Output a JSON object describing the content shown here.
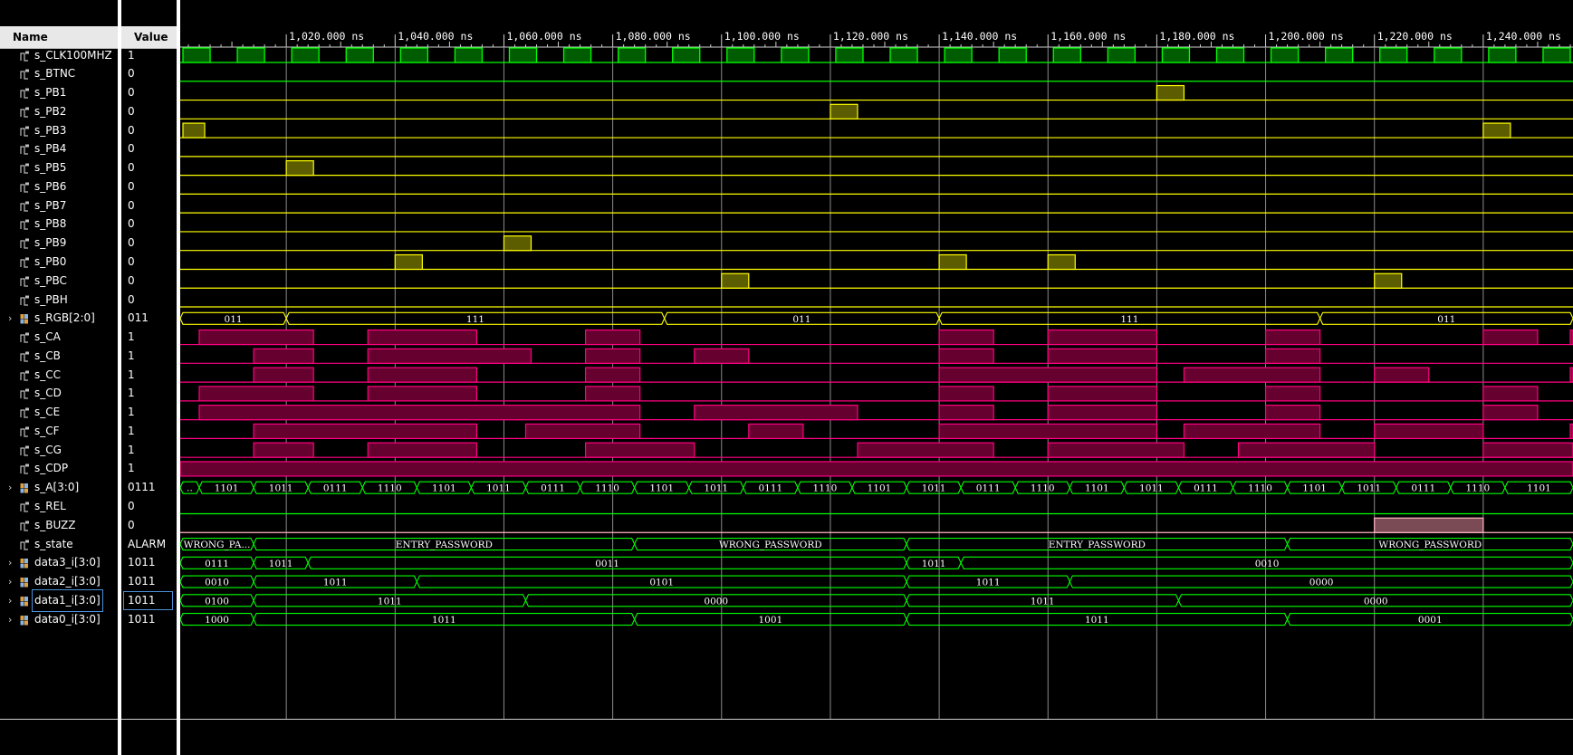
{
  "columns": {
    "name": "Name",
    "value": "Value"
  },
  "time_axis": {
    "unit": "ns",
    "range_ns": [
      1000.5,
      1256.5
    ],
    "major_ticks_ns": [
      1020,
      1040,
      1060,
      1080,
      1100,
      1120,
      1140,
      1160,
      1180,
      1200,
      1220,
      1240
    ],
    "major_tick_labels": [
      "1,020.000 ns",
      "1,040.000 ns",
      "1,060.000 ns",
      "1,080.000 ns",
      "1,100.000 ns",
      "1,120.000 ns",
      "1,140.000 ns",
      "1,160.000 ns",
      "1,180.000 ns",
      "1,200.000 ns",
      "1,220.000 ns",
      "1,240.000 ns"
    ],
    "minor_tick_step_ns": 2
  },
  "colors": {
    "clock": "#00ff00",
    "clock_fill": "#005c00",
    "low_signal": "#00ff00",
    "button": "#ffff00",
    "button_fill": "#5c5c00",
    "segment": "#ff0080",
    "segment_fill": "#66002e",
    "buzz": "#ffb4c0",
    "buzz_fill": "#7a4a55",
    "bus": "#00ff00",
    "bus_text": "#ffffff",
    "grid": "#8a8a8a",
    "axis_text": "#ffffff",
    "selection": "#4a90d9"
  },
  "signals": [
    {
      "name": "s_CLK100MHZ",
      "value": "1",
      "kind": "clock",
      "period_ns": 10,
      "high_offset_ns": 1,
      "color": "clock"
    },
    {
      "name": "s_BTNC",
      "value": "0",
      "kind": "bit",
      "pulses_ns": [],
      "color": "low_signal"
    },
    {
      "name": "s_PB1",
      "value": "0",
      "kind": "bit",
      "pulses_ns": [
        [
          1180,
          1185
        ]
      ],
      "color": "button"
    },
    {
      "name": "s_PB2",
      "value": "0",
      "kind": "bit",
      "pulses_ns": [
        [
          1120,
          1125
        ]
      ],
      "color": "button"
    },
    {
      "name": "s_PB3",
      "value": "0",
      "kind": "bit",
      "pulses_ns": [
        [
          1001,
          1005
        ],
        [
          1240,
          1245
        ]
      ],
      "color": "button"
    },
    {
      "name": "s_PB4",
      "value": "0",
      "kind": "bit",
      "pulses_ns": [],
      "color": "button"
    },
    {
      "name": "s_PB5",
      "value": "0",
      "kind": "bit",
      "pulses_ns": [
        [
          1020,
          1025
        ]
      ],
      "color": "button"
    },
    {
      "name": "s_PB6",
      "value": "0",
      "kind": "bit",
      "pulses_ns": [],
      "color": "button"
    },
    {
      "name": "s_PB7",
      "value": "0",
      "kind": "bit",
      "pulses_ns": [],
      "color": "button"
    },
    {
      "name": "s_PB8",
      "value": "0",
      "kind": "bit",
      "pulses_ns": [],
      "color": "button"
    },
    {
      "name": "s_PB9",
      "value": "0",
      "kind": "bit",
      "pulses_ns": [
        [
          1060,
          1065
        ]
      ],
      "color": "button"
    },
    {
      "name": "s_PB0",
      "value": "0",
      "kind": "bit",
      "pulses_ns": [
        [
          1040,
          1045
        ],
        [
          1140,
          1145
        ],
        [
          1160,
          1165
        ]
      ],
      "color": "button"
    },
    {
      "name": "s_PBC",
      "value": "0",
      "kind": "bit",
      "pulses_ns": [
        [
          1100,
          1105
        ],
        [
          1220,
          1225
        ]
      ],
      "color": "button"
    },
    {
      "name": "s_PBH",
      "value": "0",
      "kind": "bit",
      "pulses_ns": [],
      "color": "button"
    },
    {
      "name": "s_RGB[2:0]",
      "value": "011",
      "kind": "bus",
      "expandable": true,
      "color": "button",
      "segments": [
        [
          1000.5,
          1020,
          "011"
        ],
        [
          1020,
          1089.5,
          "111"
        ],
        [
          1089.5,
          1140,
          "011"
        ],
        [
          1140,
          1210,
          "111"
        ],
        [
          1210,
          1256.5,
          "011"
        ]
      ]
    },
    {
      "name": "s_CA",
      "value": "1",
      "kind": "bit",
      "pulses_ns": [
        [
          1004,
          1025
        ],
        [
          1035,
          1055
        ],
        [
          1075,
          1085
        ],
        [
          1140,
          1150
        ],
        [
          1160,
          1180
        ],
        [
          1200,
          1210
        ],
        [
          1240,
          1250
        ],
        [
          1256,
          1256.5
        ]
      ],
      "color": "segment"
    },
    {
      "name": "s_CB",
      "value": "1",
      "kind": "bit",
      "pulses_ns": [
        [
          1014,
          1025
        ],
        [
          1035,
          1065
        ],
        [
          1075,
          1085
        ],
        [
          1095,
          1105
        ],
        [
          1140,
          1150
        ],
        [
          1160,
          1180
        ],
        [
          1200,
          1210
        ]
      ],
      "color": "segment"
    },
    {
      "name": "s_CC",
      "value": "1",
      "kind": "bit",
      "pulses_ns": [
        [
          1014,
          1025
        ],
        [
          1035,
          1055
        ],
        [
          1075,
          1085
        ],
        [
          1140,
          1180
        ],
        [
          1185,
          1210
        ],
        [
          1220,
          1230
        ],
        [
          1256,
          1256.5
        ]
      ],
      "color": "segment"
    },
    {
      "name": "s_CD",
      "value": "1",
      "kind": "bit",
      "pulses_ns": [
        [
          1004,
          1025
        ],
        [
          1035,
          1055
        ],
        [
          1075,
          1085
        ],
        [
          1140,
          1150
        ],
        [
          1160,
          1180
        ],
        [
          1200,
          1210
        ],
        [
          1240,
          1250
        ]
      ],
      "color": "segment"
    },
    {
      "name": "s_CE",
      "value": "1",
      "kind": "bit",
      "pulses_ns": [
        [
          1004,
          1085
        ],
        [
          1095,
          1125
        ],
        [
          1140,
          1150
        ],
        [
          1160,
          1180
        ],
        [
          1200,
          1210
        ],
        [
          1240,
          1250
        ]
      ],
      "color": "segment"
    },
    {
      "name": "s_CF",
      "value": "1",
      "kind": "bit",
      "pulses_ns": [
        [
          1014,
          1055
        ],
        [
          1064,
          1085
        ],
        [
          1105,
          1115
        ],
        [
          1140,
          1180
        ],
        [
          1185,
          1210
        ],
        [
          1220,
          1240
        ],
        [
          1256,
          1256.5
        ]
      ],
      "color": "segment"
    },
    {
      "name": "s_CG",
      "value": "1",
      "kind": "bit",
      "pulses_ns": [
        [
          1014,
          1025
        ],
        [
          1035,
          1055
        ],
        [
          1075,
          1095
        ],
        [
          1125,
          1150
        ],
        [
          1160,
          1185
        ],
        [
          1195,
          1220
        ],
        [
          1240,
          1256.5
        ]
      ],
      "color": "segment"
    },
    {
      "name": "s_CDP",
      "value": "1",
      "kind": "bit",
      "pulses_ns": [
        [
          1000.5,
          1256.5
        ]
      ],
      "color": "segment"
    },
    {
      "name": "s_A[3:0]",
      "value": "0111",
      "kind": "bus",
      "expandable": true,
      "color": "bus",
      "segments": [
        [
          1000.5,
          1004,
          ".."
        ],
        [
          1004,
          1014,
          "1101"
        ],
        [
          1014,
          1024,
          "1011"
        ],
        [
          1024,
          1034,
          "0111"
        ],
        [
          1034,
          1044,
          "1110"
        ],
        [
          1044,
          1054,
          "1101"
        ],
        [
          1054,
          1064,
          "1011"
        ],
        [
          1064,
          1074,
          "0111"
        ],
        [
          1074,
          1084,
          "1110"
        ],
        [
          1084,
          1094,
          "1101"
        ],
        [
          1094,
          1104,
          "1011"
        ],
        [
          1104,
          1114,
          "0111"
        ],
        [
          1114,
          1124,
          "1110"
        ],
        [
          1124,
          1134,
          "1101"
        ],
        [
          1134,
          1144,
          "1011"
        ],
        [
          1144,
          1154,
          "0111"
        ],
        [
          1154,
          1164,
          "1110"
        ],
        [
          1164,
          1174,
          "1101"
        ],
        [
          1174,
          1184,
          "1011"
        ],
        [
          1184,
          1194,
          "0111"
        ],
        [
          1194,
          1204,
          "1110"
        ],
        [
          1204,
          1214,
          "1101"
        ],
        [
          1214,
          1224,
          "1011"
        ],
        [
          1224,
          1234,
          "0111"
        ],
        [
          1234,
          1244,
          "1110"
        ],
        [
          1244,
          1256.5,
          "1101"
        ]
      ]
    },
    {
      "name": "s_REL",
      "value": "0",
      "kind": "bit",
      "pulses_ns": [],
      "color": "low_signal"
    },
    {
      "name": "s_BUZZ",
      "value": "0",
      "kind": "bit",
      "pulses_ns": [
        [
          1220,
          1240
        ]
      ],
      "color": "buzz"
    },
    {
      "name": "s_state",
      "value": "ALARM",
      "kind": "bus",
      "expandable": false,
      "color": "bus",
      "segments": [
        [
          1000.5,
          1014,
          "WRONG_PA..."
        ],
        [
          1014,
          1084,
          "ENTRY_PASSWORD"
        ],
        [
          1084,
          1134,
          "WRONG_PASSWORD"
        ],
        [
          1134,
          1204,
          "ENTRY_PASSWORD"
        ],
        [
          1204,
          1256.5,
          "WRONG_PASSWORD"
        ]
      ]
    },
    {
      "name": "data3_i[3:0]",
      "value": "1011",
      "kind": "bus",
      "expandable": true,
      "color": "bus",
      "segments": [
        [
          1000.5,
          1014,
          "0111"
        ],
        [
          1014,
          1024,
          "1011"
        ],
        [
          1024,
          1134,
          "0011"
        ],
        [
          1134,
          1144,
          "1011"
        ],
        [
          1144,
          1256.5,
          "0010"
        ]
      ]
    },
    {
      "name": "data2_i[3:0]",
      "value": "1011",
      "kind": "bus",
      "expandable": true,
      "color": "bus",
      "segments": [
        [
          1000.5,
          1014,
          "0010"
        ],
        [
          1014,
          1044,
          "1011"
        ],
        [
          1044,
          1134,
          "0101"
        ],
        [
          1134,
          1164,
          "1011"
        ],
        [
          1164,
          1256.5,
          "0000"
        ]
      ]
    },
    {
      "name": "data1_i[3:0]",
      "value": "1011",
      "kind": "bus",
      "expandable": true,
      "selected": true,
      "color": "bus",
      "segments": [
        [
          1000.5,
          1014,
          "0100"
        ],
        [
          1014,
          1064,
          "1011"
        ],
        [
          1064,
          1134,
          "0000"
        ],
        [
          1134,
          1184,
          "1011"
        ],
        [
          1184,
          1256.5,
          "0000"
        ]
      ]
    },
    {
      "name": "data0_i[3:0]",
      "value": "1011",
      "kind": "bus",
      "expandable": true,
      "color": "bus",
      "segments": [
        [
          1000.5,
          1014,
          "1000"
        ],
        [
          1014,
          1084,
          "1011"
        ],
        [
          1084,
          1134,
          "1001"
        ],
        [
          1134,
          1204,
          "1011"
        ],
        [
          1204,
          1256.5,
          "0001"
        ]
      ]
    }
  ]
}
